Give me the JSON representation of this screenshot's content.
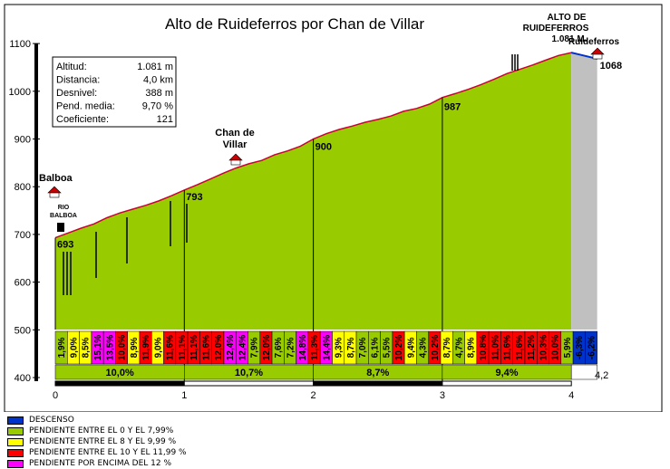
{
  "chart_data": {
    "type": "area",
    "title": "Alto de Ruideferros por Chan de Villar",
    "xlim": [
      0,
      4.2
    ],
    "ylim": [
      400,
      1100
    ],
    "x_ticks": [
      "0",
      "1",
      "2",
      "3",
      "4",
      "4,2"
    ],
    "y_ticks": [
      "400",
      "500",
      "600",
      "700",
      "800",
      "900",
      "1000",
      "1100"
    ],
    "profile": [
      [
        0.0,
        693
      ],
      [
        0.1,
        703
      ],
      [
        0.2,
        713
      ],
      [
        0.3,
        722
      ],
      [
        0.4,
        735
      ],
      [
        0.5,
        745
      ],
      [
        0.6,
        753
      ],
      [
        0.7,
        761
      ],
      [
        0.8,
        770
      ],
      [
        0.9,
        781
      ],
      [
        1.0,
        793
      ],
      [
        1.1,
        804
      ],
      [
        1.2,
        816
      ],
      [
        1.3,
        828
      ],
      [
        1.4,
        839
      ],
      [
        1.5,
        848
      ],
      [
        1.6,
        855
      ],
      [
        1.7,
        867
      ],
      [
        1.8,
        875
      ],
      [
        1.9,
        885
      ],
      [
        2.0,
        900
      ],
      [
        2.1,
        911
      ],
      [
        2.2,
        920
      ],
      [
        2.3,
        927
      ],
      [
        2.4,
        935
      ],
      [
        2.5,
        941
      ],
      [
        2.6,
        948
      ],
      [
        2.7,
        958
      ],
      [
        2.8,
        964
      ],
      [
        2.9,
        973
      ],
      [
        3.0,
        987
      ],
      [
        3.1,
        995
      ],
      [
        3.2,
        1004
      ],
      [
        3.3,
        1014
      ],
      [
        3.4,
        1025
      ],
      [
        3.5,
        1037
      ],
      [
        3.6,
        1046
      ],
      [
        3.7,
        1055
      ],
      [
        3.8,
        1065
      ],
      [
        3.9,
        1075
      ],
      [
        4.0,
        1081
      ],
      [
        4.2,
        1068
      ]
    ],
    "point_labels": [
      {
        "x": 0.0,
        "label": "693"
      },
      {
        "x": 1.0,
        "label": "793"
      },
      {
        "x": 2.0,
        "label": "900"
      },
      {
        "x": 3.0,
        "label": "987"
      },
      {
        "x": 4.2,
        "label": "1068"
      }
    ],
    "segment_gradients": [
      "1,9%",
      "9,0%",
      "8,5%",
      "15,1%",
      "13,5%",
      "10,0%",
      "8,9%",
      "11,9%",
      "9,0%",
      "11,6%",
      "11,1%",
      "11,1%",
      "11,6%",
      "12,0%",
      "12,4%",
      "12,4%",
      "7,9%",
      "12,0%",
      "7,6%",
      "7,2%",
      "14,8%",
      "11,3%",
      "14,4%",
      "9,3%",
      "8,7%",
      "7,0%",
      "6,1%",
      "5,5%",
      "10,2%",
      "9,4%",
      "4,3%",
      "10,2%",
      "8,7%",
      "4,7%",
      "8,9%",
      "10,8%",
      "11,0%",
      "11,6%",
      "11,6%",
      "11,2%",
      "10,3%",
      "10,0%",
      "5,9%",
      "-6,3%",
      "-6,2%"
    ],
    "segment_colors": [
      "#99cc00",
      "#ffff00",
      "#ffff00",
      "#ff00ff",
      "#ff00ff",
      "#ff0000",
      "#ffff00",
      "#ff0000",
      "#ffff00",
      "#ff0000",
      "#ff0000",
      "#ff0000",
      "#ff0000",
      "#ff0000",
      "#ff00ff",
      "#ff00ff",
      "#99cc00",
      "#ff0000",
      "#99cc00",
      "#99cc00",
      "#ff00ff",
      "#ff0000",
      "#ff00ff",
      "#ffff00",
      "#ffff00",
      "#99cc00",
      "#99cc00",
      "#99cc00",
      "#ff0000",
      "#ffff00",
      "#99cc00",
      "#ff0000",
      "#ffff00",
      "#99cc00",
      "#ffff00",
      "#ff0000",
      "#ff0000",
      "#ff0000",
      "#ff0000",
      "#ff0000",
      "#ff0000",
      "#ff0000",
      "#99cc00",
      "#0033cc",
      "#0033cc"
    ],
    "km_averages": [
      "10,0%",
      "10,7%",
      "8,7%",
      "9,4%"
    ],
    "places": [
      {
        "name": "Balboa",
        "x": 0.0
      },
      {
        "name": "Chan de Villar",
        "x": 1.6
      },
      {
        "name": "Ruideferros",
        "x": 4.2
      }
    ],
    "summit_label_1": "ALTO DE",
    "summit_label_2": "RUIDEFERROS",
    "summit_label_3": "1.081 M.",
    "river_label_1": "RIO",
    "river_label_2": "BALBOA",
    "grid": false,
    "legend_position": "bottom-left"
  },
  "stats": {
    "rows": [
      {
        "label": "Altitud:",
        "value": "1.081 m"
      },
      {
        "label": "Distancia:",
        "value": "4,0 km"
      },
      {
        "label": "Desnivel:",
        "value": "388 m"
      },
      {
        "label": "Pend. media:",
        "value": "9,70 %"
      },
      {
        "label": "Coeficiente:",
        "value": "121"
      }
    ]
  },
  "legend": [
    {
      "label": "DESCENSO",
      "color": "#0033cc"
    },
    {
      "label": "PENDIENTE ENTRE EL 0 Y EL 7,99%",
      "color": "#99cc00"
    },
    {
      "label": "PENDIENTE ENTRE EL 8 Y EL 9,99 %",
      "color": "#ffff00"
    },
    {
      "label": "PENDIENTE ENTRE EL 10 Y EL 11,99 %",
      "color": "#ff0000"
    },
    {
      "label": "PENDIENTE POR ENCIMA DEL 12 %",
      "color": "#ff00ff"
    }
  ]
}
